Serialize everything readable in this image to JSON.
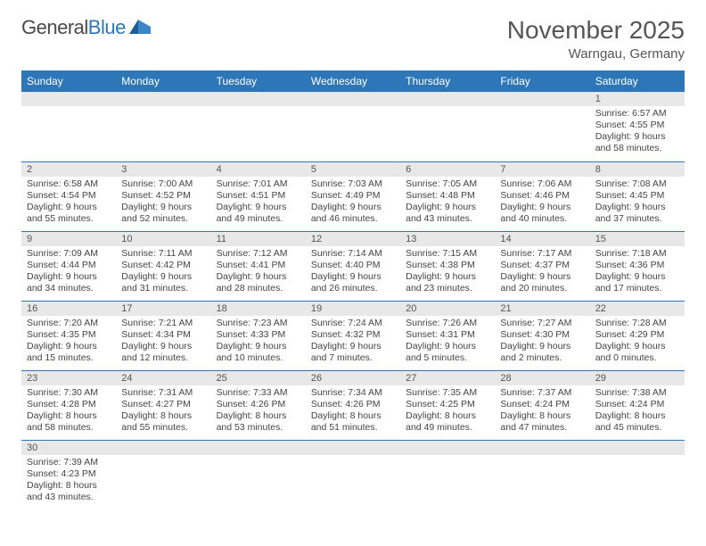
{
  "brand": {
    "part1": "General",
    "part2": "Blue"
  },
  "title": "November 2025",
  "location": "Warngau, Germany",
  "colors": {
    "header_bg": "#2d76b7",
    "header_text": "#ffffff",
    "daynum_bg": "#e8e8e8",
    "border": "#2d76b7",
    "text": "#444444"
  },
  "weekdays": [
    "Sunday",
    "Monday",
    "Tuesday",
    "Wednesday",
    "Thursday",
    "Friday",
    "Saturday"
  ],
  "weeks": [
    [
      {
        "n": "",
        "sr": "",
        "ss": "",
        "dl": ""
      },
      {
        "n": "",
        "sr": "",
        "ss": "",
        "dl": ""
      },
      {
        "n": "",
        "sr": "",
        "ss": "",
        "dl": ""
      },
      {
        "n": "",
        "sr": "",
        "ss": "",
        "dl": ""
      },
      {
        "n": "",
        "sr": "",
        "ss": "",
        "dl": ""
      },
      {
        "n": "",
        "sr": "",
        "ss": "",
        "dl": ""
      },
      {
        "n": "1",
        "sr": "Sunrise: 6:57 AM",
        "ss": "Sunset: 4:55 PM",
        "dl": "Daylight: 9 hours and 58 minutes."
      }
    ],
    [
      {
        "n": "2",
        "sr": "Sunrise: 6:58 AM",
        "ss": "Sunset: 4:54 PM",
        "dl": "Daylight: 9 hours and 55 minutes."
      },
      {
        "n": "3",
        "sr": "Sunrise: 7:00 AM",
        "ss": "Sunset: 4:52 PM",
        "dl": "Daylight: 9 hours and 52 minutes."
      },
      {
        "n": "4",
        "sr": "Sunrise: 7:01 AM",
        "ss": "Sunset: 4:51 PM",
        "dl": "Daylight: 9 hours and 49 minutes."
      },
      {
        "n": "5",
        "sr": "Sunrise: 7:03 AM",
        "ss": "Sunset: 4:49 PM",
        "dl": "Daylight: 9 hours and 46 minutes."
      },
      {
        "n": "6",
        "sr": "Sunrise: 7:05 AM",
        "ss": "Sunset: 4:48 PM",
        "dl": "Daylight: 9 hours and 43 minutes."
      },
      {
        "n": "7",
        "sr": "Sunrise: 7:06 AM",
        "ss": "Sunset: 4:46 PM",
        "dl": "Daylight: 9 hours and 40 minutes."
      },
      {
        "n": "8",
        "sr": "Sunrise: 7:08 AM",
        "ss": "Sunset: 4:45 PM",
        "dl": "Daylight: 9 hours and 37 minutes."
      }
    ],
    [
      {
        "n": "9",
        "sr": "Sunrise: 7:09 AM",
        "ss": "Sunset: 4:44 PM",
        "dl": "Daylight: 9 hours and 34 minutes."
      },
      {
        "n": "10",
        "sr": "Sunrise: 7:11 AM",
        "ss": "Sunset: 4:42 PM",
        "dl": "Daylight: 9 hours and 31 minutes."
      },
      {
        "n": "11",
        "sr": "Sunrise: 7:12 AM",
        "ss": "Sunset: 4:41 PM",
        "dl": "Daylight: 9 hours and 28 minutes."
      },
      {
        "n": "12",
        "sr": "Sunrise: 7:14 AM",
        "ss": "Sunset: 4:40 PM",
        "dl": "Daylight: 9 hours and 26 minutes."
      },
      {
        "n": "13",
        "sr": "Sunrise: 7:15 AM",
        "ss": "Sunset: 4:38 PM",
        "dl": "Daylight: 9 hours and 23 minutes."
      },
      {
        "n": "14",
        "sr": "Sunrise: 7:17 AM",
        "ss": "Sunset: 4:37 PM",
        "dl": "Daylight: 9 hours and 20 minutes."
      },
      {
        "n": "15",
        "sr": "Sunrise: 7:18 AM",
        "ss": "Sunset: 4:36 PM",
        "dl": "Daylight: 9 hours and 17 minutes."
      }
    ],
    [
      {
        "n": "16",
        "sr": "Sunrise: 7:20 AM",
        "ss": "Sunset: 4:35 PM",
        "dl": "Daylight: 9 hours and 15 minutes."
      },
      {
        "n": "17",
        "sr": "Sunrise: 7:21 AM",
        "ss": "Sunset: 4:34 PM",
        "dl": "Daylight: 9 hours and 12 minutes."
      },
      {
        "n": "18",
        "sr": "Sunrise: 7:23 AM",
        "ss": "Sunset: 4:33 PM",
        "dl": "Daylight: 9 hours and 10 minutes."
      },
      {
        "n": "19",
        "sr": "Sunrise: 7:24 AM",
        "ss": "Sunset: 4:32 PM",
        "dl": "Daylight: 9 hours and 7 minutes."
      },
      {
        "n": "20",
        "sr": "Sunrise: 7:26 AM",
        "ss": "Sunset: 4:31 PM",
        "dl": "Daylight: 9 hours and 5 minutes."
      },
      {
        "n": "21",
        "sr": "Sunrise: 7:27 AM",
        "ss": "Sunset: 4:30 PM",
        "dl": "Daylight: 9 hours and 2 minutes."
      },
      {
        "n": "22",
        "sr": "Sunrise: 7:28 AM",
        "ss": "Sunset: 4:29 PM",
        "dl": "Daylight: 9 hours and 0 minutes."
      }
    ],
    [
      {
        "n": "23",
        "sr": "Sunrise: 7:30 AM",
        "ss": "Sunset: 4:28 PM",
        "dl": "Daylight: 8 hours and 58 minutes."
      },
      {
        "n": "24",
        "sr": "Sunrise: 7:31 AM",
        "ss": "Sunset: 4:27 PM",
        "dl": "Daylight: 8 hours and 55 minutes."
      },
      {
        "n": "25",
        "sr": "Sunrise: 7:33 AM",
        "ss": "Sunset: 4:26 PM",
        "dl": "Daylight: 8 hours and 53 minutes."
      },
      {
        "n": "26",
        "sr": "Sunrise: 7:34 AM",
        "ss": "Sunset: 4:26 PM",
        "dl": "Daylight: 8 hours and 51 minutes."
      },
      {
        "n": "27",
        "sr": "Sunrise: 7:35 AM",
        "ss": "Sunset: 4:25 PM",
        "dl": "Daylight: 8 hours and 49 minutes."
      },
      {
        "n": "28",
        "sr": "Sunrise: 7:37 AM",
        "ss": "Sunset: 4:24 PM",
        "dl": "Daylight: 8 hours and 47 minutes."
      },
      {
        "n": "29",
        "sr": "Sunrise: 7:38 AM",
        "ss": "Sunset: 4:24 PM",
        "dl": "Daylight: 8 hours and 45 minutes."
      }
    ],
    [
      {
        "n": "30",
        "sr": "Sunrise: 7:39 AM",
        "ss": "Sunset: 4:23 PM",
        "dl": "Daylight: 8 hours and 43 minutes."
      },
      {
        "n": "",
        "sr": "",
        "ss": "",
        "dl": ""
      },
      {
        "n": "",
        "sr": "",
        "ss": "",
        "dl": ""
      },
      {
        "n": "",
        "sr": "",
        "ss": "",
        "dl": ""
      },
      {
        "n": "",
        "sr": "",
        "ss": "",
        "dl": ""
      },
      {
        "n": "",
        "sr": "",
        "ss": "",
        "dl": ""
      },
      {
        "n": "",
        "sr": "",
        "ss": "",
        "dl": ""
      }
    ]
  ]
}
